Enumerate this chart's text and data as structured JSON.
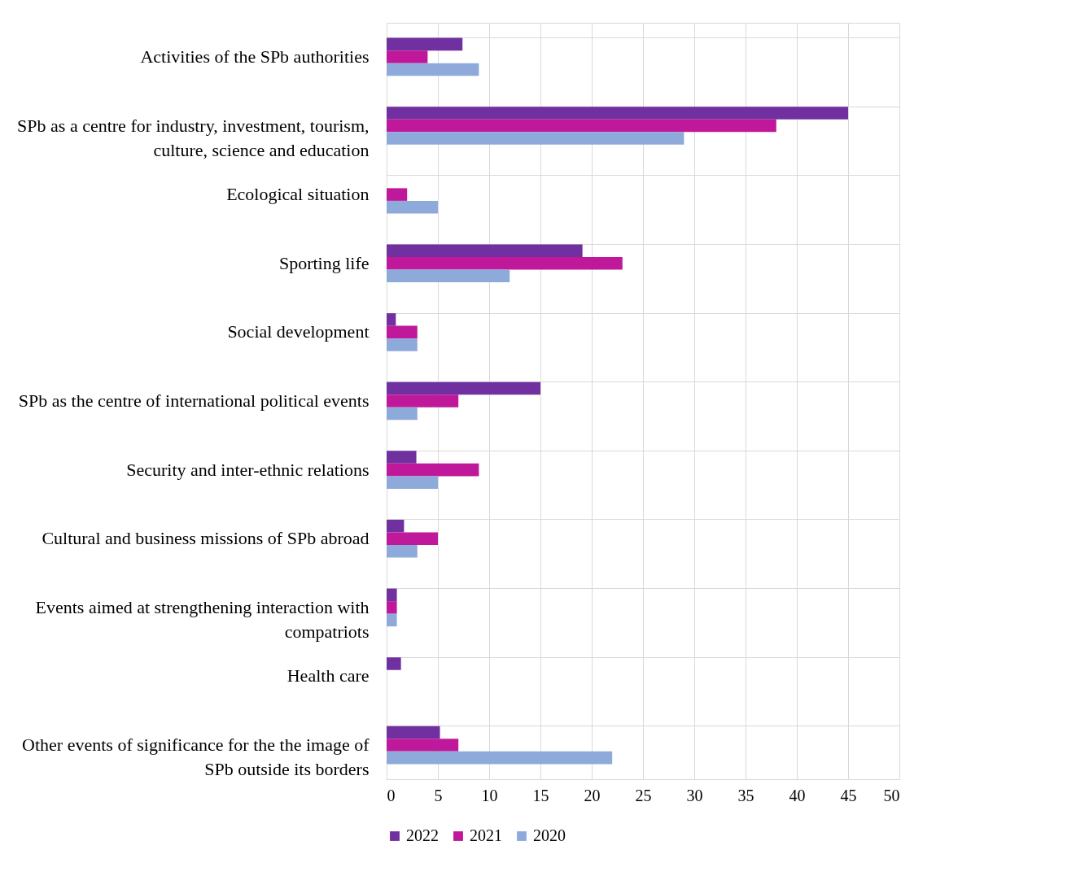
{
  "chart_data": {
    "type": "bar",
    "orientation": "horizontal",
    "categories": [
      "Activities of the SPb authorities",
      "SPb as a centre for industry, investment, tourism, culture, science and education",
      "Ecological situation",
      "Sporting life",
      "Social development",
      "SPb as the centre of international political events",
      "Security and inter-ethnic relations",
      "Cultural and business missions of SPb abroad",
      "Events aimed at strengthening interaction with compatriots",
      "Health care",
      "Other events of significance for the the image of SPb outside its borders"
    ],
    "series": [
      {
        "name": "2022",
        "color": "#7030a0",
        "values": [
          7.4,
          45,
          null,
          19.1,
          0.9,
          15,
          2.9,
          1.7,
          1,
          1.4,
          5.2
        ]
      },
      {
        "name": "2021",
        "color": "#c0189a",
        "values": [
          4,
          38,
          2,
          23,
          3,
          7,
          9,
          5,
          1,
          null,
          7
        ]
      },
      {
        "name": "2020",
        "color": "#8eaadb",
        "values": [
          9,
          29,
          5,
          12,
          3,
          3,
          5,
          3,
          1,
          null,
          22
        ]
      }
    ],
    "xlim": [
      0,
      50
    ],
    "xticks": [
      0,
      5,
      10,
      15,
      20,
      25,
      30,
      35,
      40,
      45,
      50
    ],
    "grid": true,
    "legend": "bottom"
  }
}
